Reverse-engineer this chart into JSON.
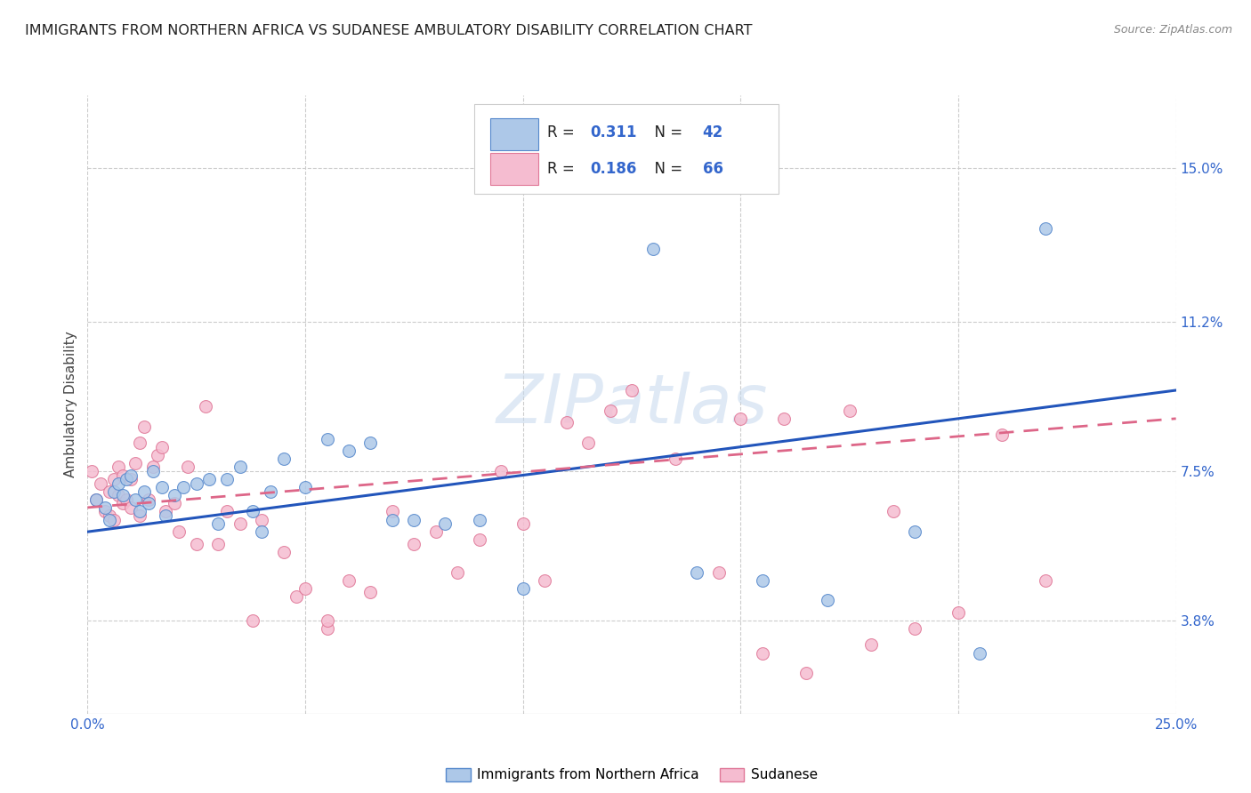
{
  "title": "IMMIGRANTS FROM NORTHERN AFRICA VS SUDANESE AMBULATORY DISABILITY CORRELATION CHART",
  "source": "Source: ZipAtlas.com",
  "ylabel": "Ambulatory Disability",
  "x_min": 0.0,
  "x_max": 0.25,
  "y_min": 0.015,
  "y_max": 0.168,
  "y_tick_labels_right": [
    "3.8%",
    "7.5%",
    "11.2%",
    "15.0%"
  ],
  "y_tick_values_right": [
    0.038,
    0.075,
    0.112,
    0.15
  ],
  "blue_R": "0.311",
  "blue_N": "42",
  "pink_R": "0.186",
  "pink_N": "66",
  "blue_color": "#adc8e8",
  "blue_edge": "#5588cc",
  "pink_color": "#f5bcd0",
  "pink_edge": "#e07898",
  "blue_line_color": "#2255bb",
  "pink_line_color": "#dd6688",
  "legend_label_blue": "Immigrants from Northern Africa",
  "legend_label_pink": "Sudanese",
  "watermark": "ZIPatlas",
  "blue_trend_x0": 0.0,
  "blue_trend_y0": 0.06,
  "blue_trend_x1": 0.25,
  "blue_trend_y1": 0.095,
  "pink_trend_x0": 0.0,
  "pink_trend_y0": 0.066,
  "pink_trend_x1": 0.25,
  "pink_trend_y1": 0.088,
  "blue_scatter_x": [
    0.002,
    0.004,
    0.005,
    0.006,
    0.007,
    0.008,
    0.009,
    0.01,
    0.011,
    0.012,
    0.013,
    0.014,
    0.015,
    0.017,
    0.018,
    0.02,
    0.022,
    0.025,
    0.028,
    0.03,
    0.032,
    0.035,
    0.038,
    0.04,
    0.042,
    0.045,
    0.05,
    0.055,
    0.06,
    0.065,
    0.07,
    0.075,
    0.082,
    0.09,
    0.1,
    0.13,
    0.14,
    0.155,
    0.17,
    0.19,
    0.205,
    0.22
  ],
  "blue_scatter_y": [
    0.068,
    0.066,
    0.063,
    0.07,
    0.072,
    0.069,
    0.073,
    0.074,
    0.068,
    0.065,
    0.07,
    0.067,
    0.075,
    0.071,
    0.064,
    0.069,
    0.071,
    0.072,
    0.073,
    0.062,
    0.073,
    0.076,
    0.065,
    0.06,
    0.07,
    0.078,
    0.071,
    0.083,
    0.08,
    0.082,
    0.063,
    0.063,
    0.062,
    0.063,
    0.046,
    0.13,
    0.05,
    0.048,
    0.043,
    0.06,
    0.03,
    0.135
  ],
  "pink_scatter_x": [
    0.001,
    0.002,
    0.003,
    0.004,
    0.005,
    0.005,
    0.006,
    0.006,
    0.007,
    0.007,
    0.008,
    0.008,
    0.009,
    0.01,
    0.01,
    0.011,
    0.012,
    0.012,
    0.013,
    0.014,
    0.015,
    0.016,
    0.017,
    0.018,
    0.02,
    0.021,
    0.023,
    0.025,
    0.027,
    0.03,
    0.032,
    0.035,
    0.038,
    0.04,
    0.045,
    0.048,
    0.05,
    0.055,
    0.06,
    0.07,
    0.08,
    0.09,
    0.1,
    0.11,
    0.12,
    0.135,
    0.15,
    0.16,
    0.175,
    0.18,
    0.19,
    0.2,
    0.21,
    0.22,
    0.055,
    0.065,
    0.075,
    0.085,
    0.095,
    0.105,
    0.115,
    0.125,
    0.145,
    0.155,
    0.165,
    0.185
  ],
  "pink_scatter_y": [
    0.075,
    0.068,
    0.072,
    0.065,
    0.064,
    0.07,
    0.063,
    0.073,
    0.069,
    0.076,
    0.067,
    0.074,
    0.068,
    0.066,
    0.073,
    0.077,
    0.082,
    0.064,
    0.086,
    0.068,
    0.076,
    0.079,
    0.081,
    0.065,
    0.067,
    0.06,
    0.076,
    0.057,
    0.091,
    0.057,
    0.065,
    0.062,
    0.038,
    0.063,
    0.055,
    0.044,
    0.046,
    0.036,
    0.048,
    0.065,
    0.06,
    0.058,
    0.062,
    0.087,
    0.09,
    0.078,
    0.088,
    0.088,
    0.09,
    0.032,
    0.036,
    0.04,
    0.084,
    0.048,
    0.038,
    0.045,
    0.057,
    0.05,
    0.075,
    0.048,
    0.082,
    0.095,
    0.05,
    0.03,
    0.025,
    0.065
  ]
}
